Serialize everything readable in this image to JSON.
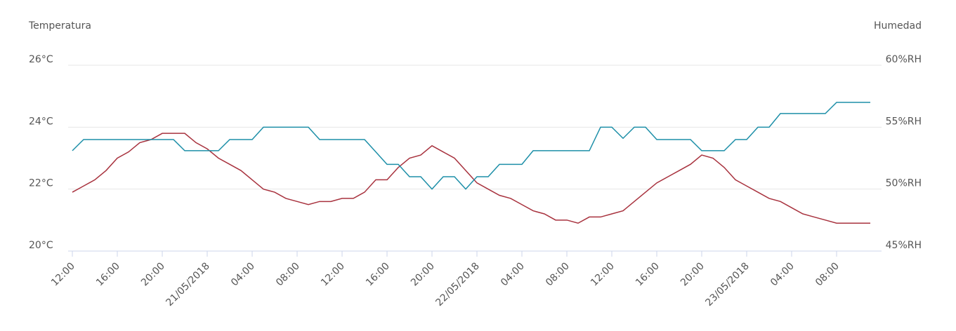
{
  "chart_data": {
    "type": "line",
    "y_title": "Temperatura",
    "y2_title": "Humedad",
    "categories": [
      "12:00",
      null,
      null,
      null,
      "16:00",
      null,
      null,
      null,
      "20:00",
      null,
      null,
      null,
      "21/05/2018",
      null,
      null,
      null,
      "04:00",
      null,
      null,
      null,
      "08:00",
      null,
      null,
      null,
      "12:00",
      null,
      null,
      null,
      "16:00",
      null,
      null,
      null,
      "20:00",
      null,
      null,
      null,
      "22/05/2018",
      null,
      null,
      null,
      "04:00",
      null,
      null,
      null,
      "08:00",
      null,
      null,
      null,
      "12:00",
      null,
      null,
      null,
      "16:00",
      null,
      null,
      null,
      "20:00",
      null,
      null,
      null,
      "23/05/2018",
      null,
      null,
      null,
      "04:00",
      null,
      null,
      null,
      "08:00",
      null,
      null,
      null
    ],
    "series": [
      {
        "name": "Temperatura",
        "color": "#a8323e",
        "axis": "y",
        "values": [
          21.9,
          22.1,
          22.3,
          22.6,
          23.0,
          23.2,
          23.5,
          23.6,
          23.8,
          23.8,
          23.8,
          23.5,
          23.3,
          23.0,
          22.8,
          22.6,
          22.3,
          22.0,
          21.9,
          21.7,
          21.6,
          21.5,
          21.6,
          21.6,
          21.7,
          21.7,
          21.9,
          22.3,
          22.3,
          22.7,
          23.0,
          23.1,
          23.4,
          23.2,
          23.0,
          22.6,
          22.2,
          22.0,
          21.8,
          21.7,
          21.5,
          21.3,
          21.2,
          21.0,
          21.0,
          20.9,
          21.1,
          21.1,
          21.2,
          21.3,
          21.6,
          21.9,
          22.2,
          22.4,
          22.6,
          22.8,
          23.1,
          23.0,
          22.7,
          22.3,
          22.1,
          21.9,
          21.7,
          21.6,
          21.4,
          21.2,
          21.1,
          21.0,
          20.9,
          20.9,
          20.9,
          20.9
        ]
      },
      {
        "name": "Humedad",
        "color": "#1d8fa8",
        "axis": "y2",
        "values": [
          53.1,
          54.0,
          54.0,
          54.0,
          54.0,
          54.0,
          54.0,
          54.0,
          54.0,
          54.0,
          53.1,
          53.1,
          53.1,
          53.1,
          54.0,
          54.0,
          54.0,
          55.0,
          55.0,
          55.0,
          55.0,
          55.0,
          54.0,
          54.0,
          54.0,
          54.0,
          54.0,
          53.0,
          52.0,
          52.0,
          51.0,
          51.0,
          50.0,
          51.0,
          51.0,
          50.0,
          51.0,
          51.0,
          52.0,
          52.0,
          52.0,
          53.1,
          53.1,
          53.1,
          53.1,
          53.1,
          53.1,
          55.0,
          55.0,
          54.1,
          55.0,
          55.0,
          54.0,
          54.0,
          54.0,
          54.0,
          53.1,
          53.1,
          53.1,
          54.0,
          54.0,
          55.0,
          55.0,
          56.1,
          56.1,
          56.1,
          56.1,
          56.1,
          57.0,
          57.0,
          57.0,
          57.0
        ]
      }
    ],
    "ylim": [
      20,
      26
    ],
    "yticks": [
      {
        "value": 20,
        "label": "20°C"
      },
      {
        "value": 22,
        "label": "22°C"
      },
      {
        "value": 24,
        "label": "24°C"
      },
      {
        "value": 26,
        "label": "26°C"
      }
    ],
    "y2lim": [
      45,
      60
    ],
    "y2ticks": [
      {
        "value": 45,
        "label": "45%RH"
      },
      {
        "value": 50,
        "label": "50%RH"
      },
      {
        "value": 55,
        "label": "55%RH"
      },
      {
        "value": 60,
        "label": "60%RH"
      }
    ],
    "grid": true
  }
}
